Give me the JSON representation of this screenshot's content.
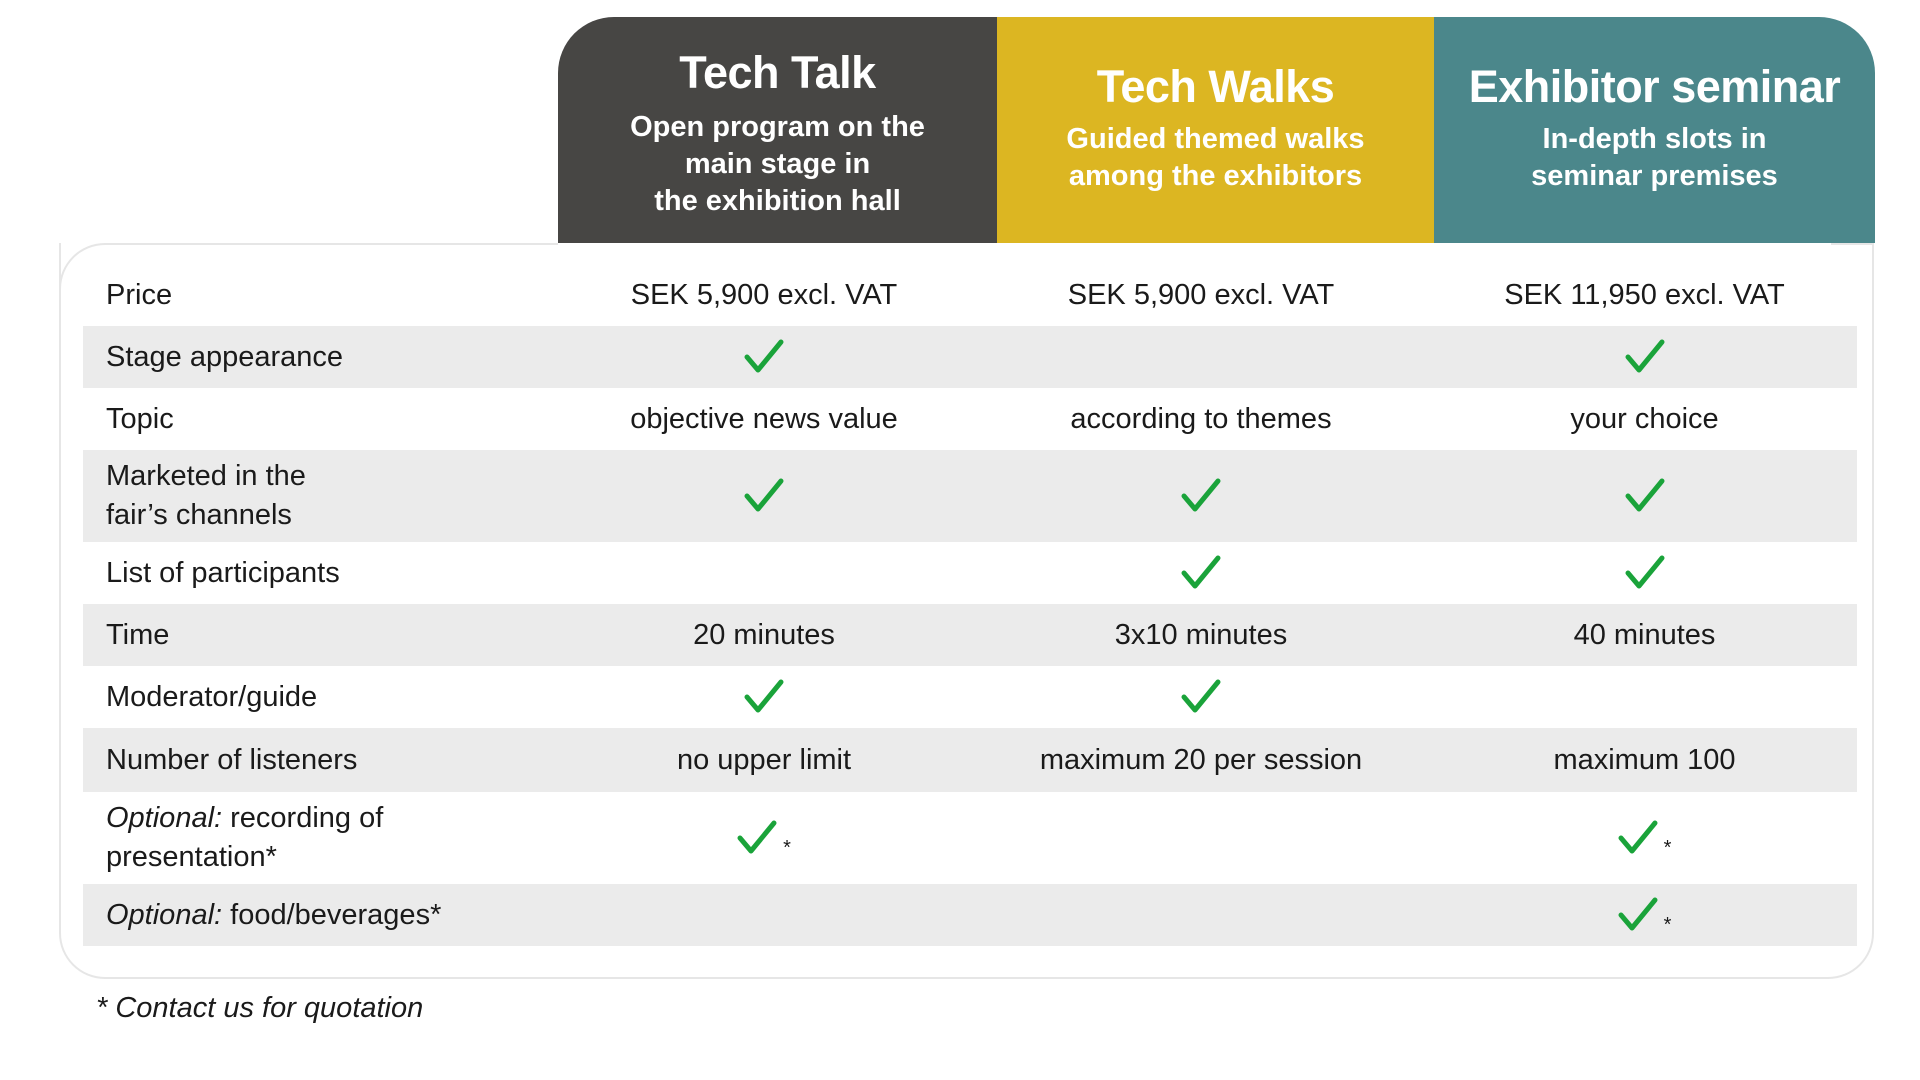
{
  "colors": {
    "tech_talk": "#474644",
    "tech_walks": "#dcb622",
    "exhibitor_seminar": "#4b878b",
    "check": "#1aa33a",
    "row_alt": "#ebebeb"
  },
  "columns": [
    {
      "title": "Tech Talk",
      "subtitle": "Open program on the\nmain stage in\nthe exhibition hall"
    },
    {
      "title": "Tech Walks",
      "subtitle": "Guided themed walks\namong the exhibitors"
    },
    {
      "title": "Exhibitor seminar",
      "subtitle": "In-depth slots in\nseminar premises"
    }
  ],
  "rows": [
    {
      "label": "Price",
      "cells": [
        "SEK 5,900 excl. VAT",
        "SEK 5,900 excl. VAT",
        "SEK 11,950 excl. VAT"
      ]
    },
    {
      "label": "Stage appearance",
      "cells": [
        "check",
        "",
        "check"
      ]
    },
    {
      "label": "Topic",
      "cells": [
        "objective news value",
        "according to themes",
        "your choice"
      ]
    },
    {
      "label": "Marketed in the\nfair’s channels",
      "cells": [
        "check",
        "check",
        "check"
      ]
    },
    {
      "label": "List of participants",
      "cells": [
        "",
        "check",
        "check"
      ]
    },
    {
      "label": "Time",
      "cells": [
        "20 minutes",
        "3x10 minutes",
        "40 minutes"
      ]
    },
    {
      "label": "Moderator/guide",
      "cells": [
        "check",
        "check",
        ""
      ]
    },
    {
      "label": "Number of listeners",
      "cells": [
        "no upper limit",
        "maximum 20 per session",
        "maximum 100"
      ]
    },
    {
      "label_italic": "Optional:",
      "label_rest": " recording of",
      "label_line2": "presentation*",
      "cells": [
        "check*",
        "",
        "check*"
      ]
    },
    {
      "label_italic": "Optional:",
      "label_rest": " food/beverages*",
      "cells": [
        "",
        "",
        "check*"
      ]
    }
  ],
  "star": "*",
  "footnote": "* Contact us for quotation"
}
